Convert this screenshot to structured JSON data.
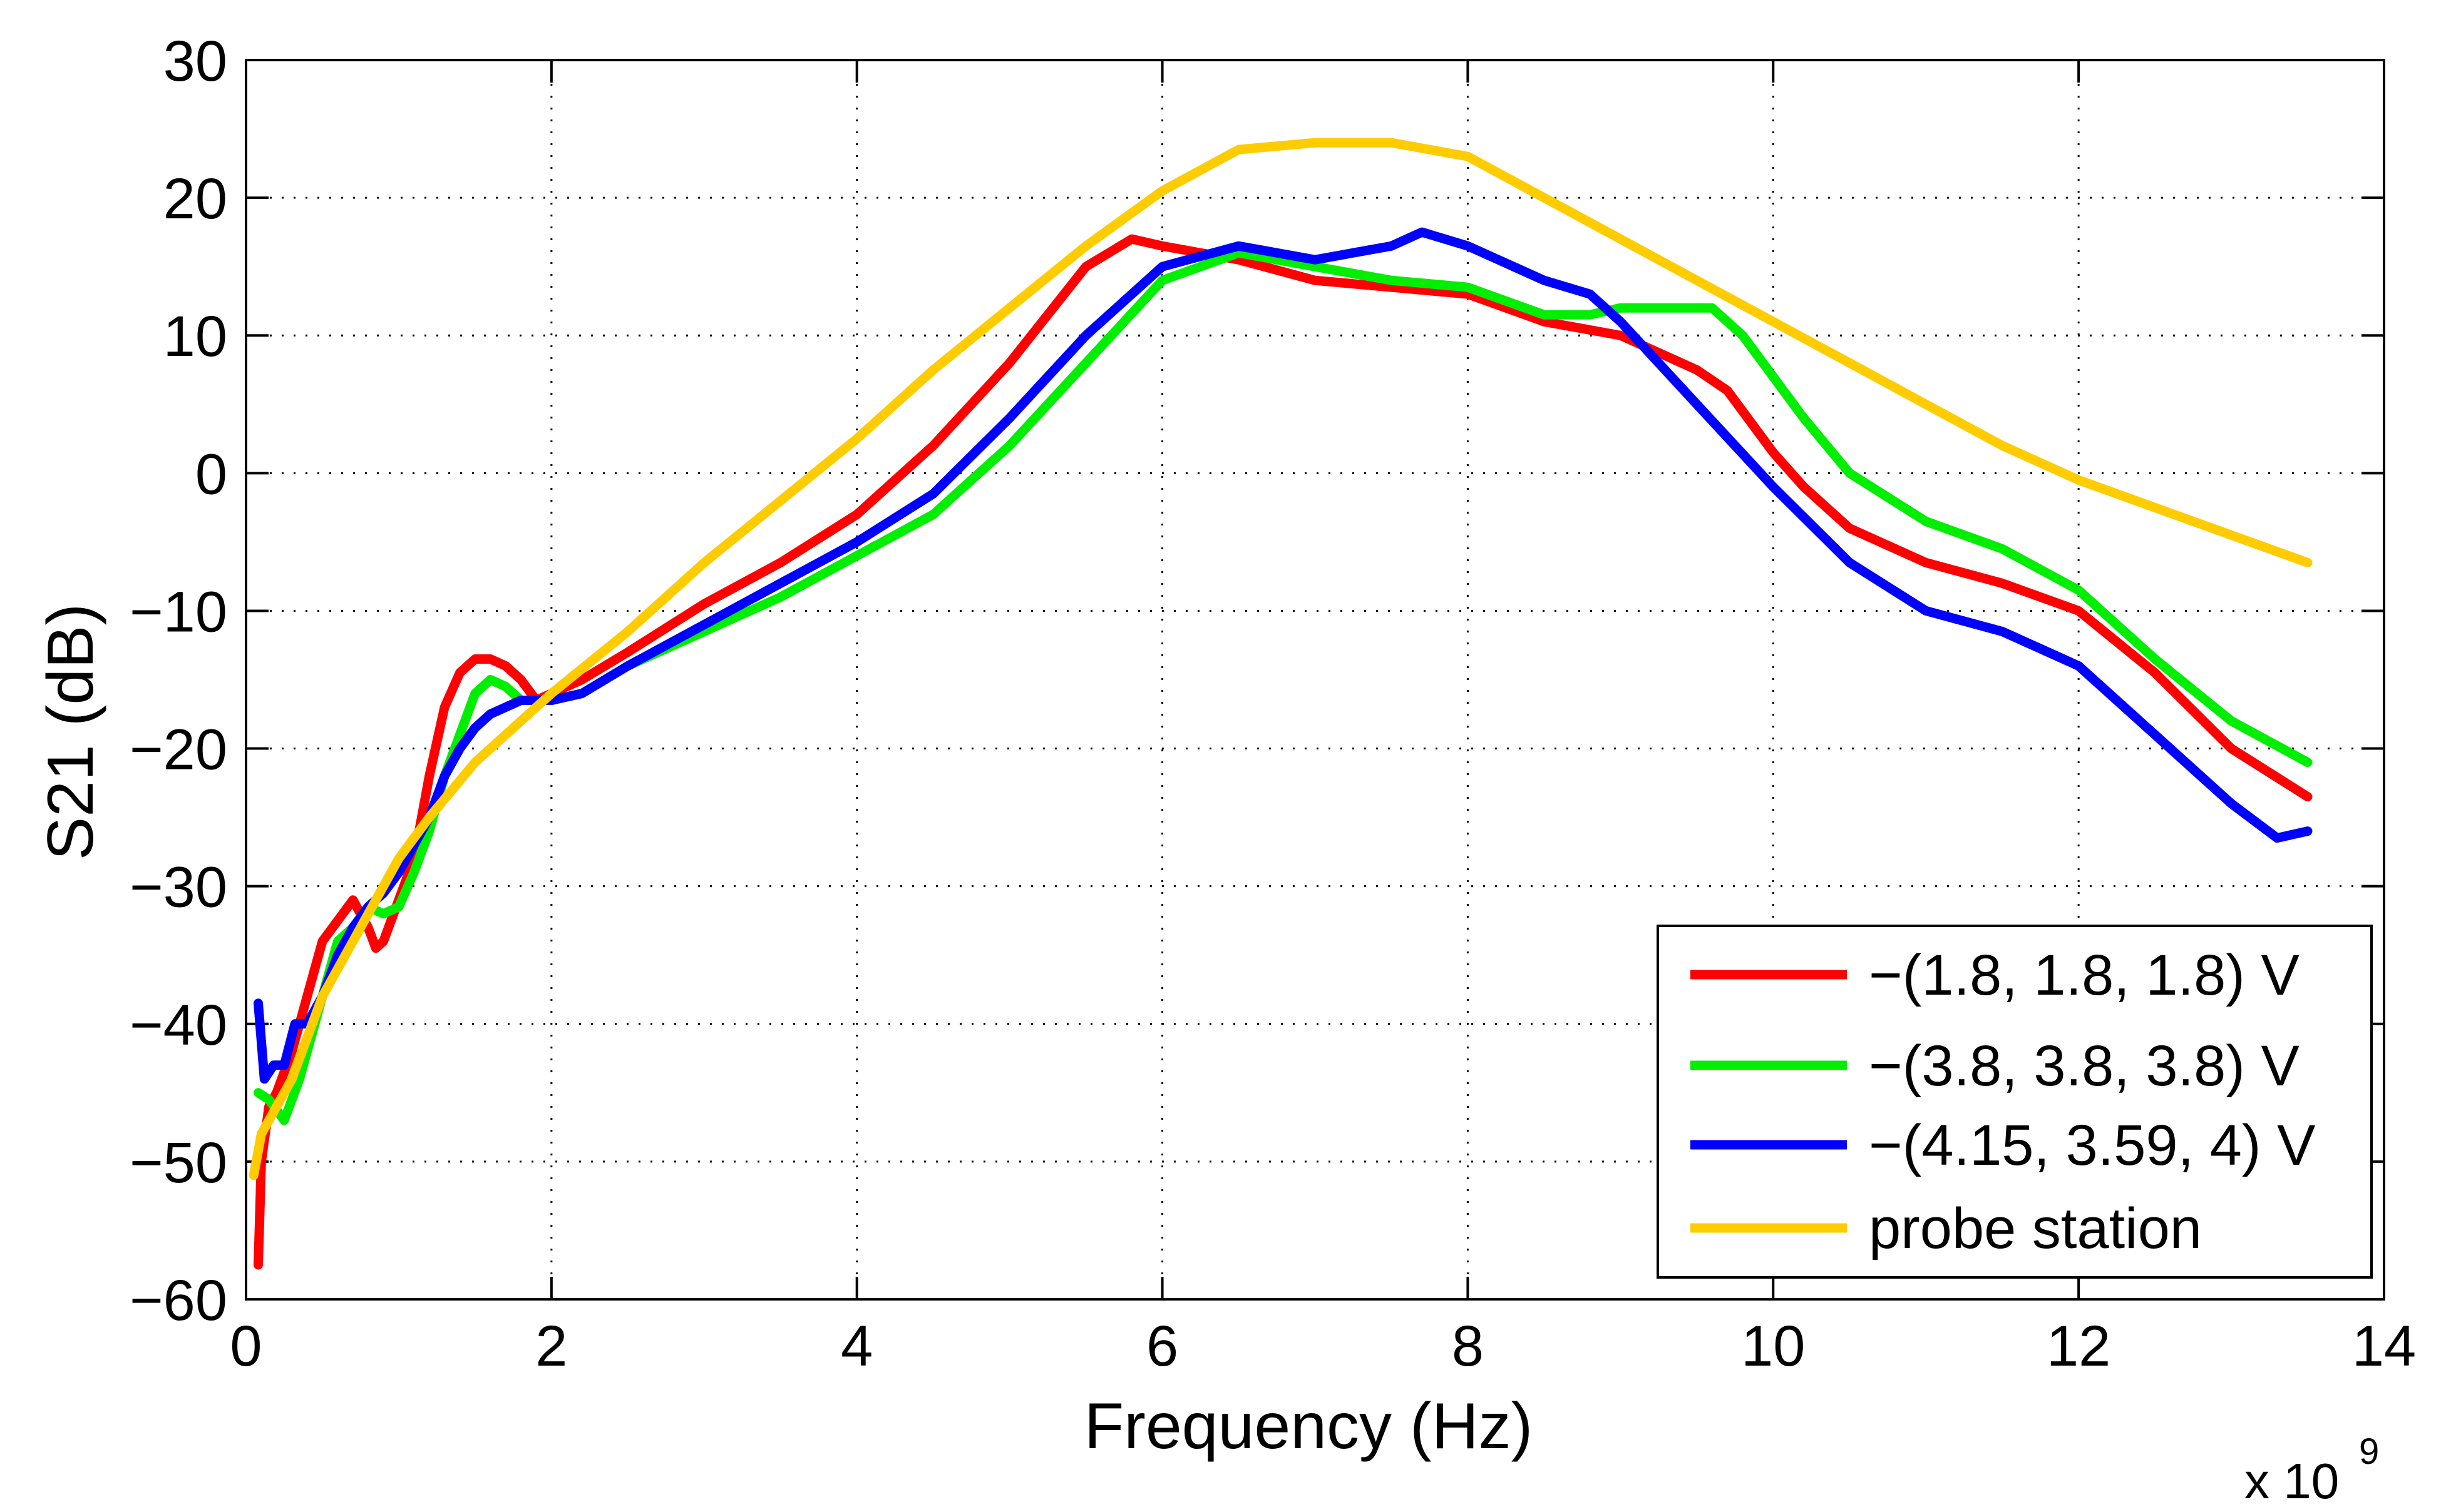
{
  "chart_data": {
    "type": "line",
    "title": "",
    "xlabel": "Frequency (Hz)",
    "ylabel": "S21 (dB)",
    "x_multiplier_label": "x 10",
    "x_multiplier_exp": "9",
    "xlim": [
      0,
      14
    ],
    "ylim": [
      -60,
      30
    ],
    "xticks": [
      0,
      2,
      4,
      6,
      8,
      10,
      12,
      14
    ],
    "xtick_labels": [
      "0",
      "2",
      "4",
      "6",
      "8",
      "10",
      "12",
      "14"
    ],
    "yticks": [
      30,
      20,
      10,
      0,
      -10,
      -20,
      -30,
      -40,
      -50,
      -60
    ],
    "ytick_labels": [
      "30",
      "20",
      "10",
      "0",
      "−10",
      "−20",
      "−30",
      "−40",
      "−50",
      "−60"
    ],
    "grid": true,
    "legend_position": "bottom-right",
    "series": [
      {
        "name": "−(1.8, 1.8, 1.8) V",
        "color": "#ff0000",
        "x": [
          0.08,
          0.1,
          0.15,
          0.2,
          0.3,
          0.4,
          0.5,
          0.6,
          0.7,
          0.8,
          0.85,
          0.9,
          1.0,
          1.1,
          1.2,
          1.3,
          1.4,
          1.5,
          1.6,
          1.7,
          1.8,
          1.9,
          2.0,
          2.2,
          2.5,
          3.0,
          3.5,
          4.0,
          4.5,
          5.0,
          5.5,
          5.8,
          6.0,
          6.5,
          7.0,
          7.5,
          8.0,
          8.5,
          9.0,
          9.5,
          9.7,
          9.9,
          10.0,
          10.2,
          10.5,
          11.0,
          11.5,
          12.0,
          12.5,
          13.0,
          13.5
        ],
        "y": [
          -57.5,
          -50,
          -46,
          -45,
          -42,
          -38,
          -34,
          -32.5,
          -31,
          -33,
          -34.5,
          -34,
          -31,
          -28,
          -22,
          -17,
          -14.5,
          -13.5,
          -13.5,
          -14,
          -15,
          -16.5,
          -16,
          -15,
          -13,
          -9.5,
          -6.5,
          -3,
          2,
          8,
          15,
          17,
          16.5,
          15.5,
          14,
          13.5,
          13,
          11,
          10,
          7.5,
          6,
          3,
          1.5,
          -1,
          -4,
          -6.5,
          -8,
          -10,
          -14.5,
          -20,
          -23.5
        ]
      },
      {
        "name": "−(3.8, 3.8, 3.8) V",
        "color": "#00ee00",
        "x": [
          0.08,
          0.15,
          0.25,
          0.35,
          0.45,
          0.6,
          0.7,
          0.8,
          0.9,
          1.0,
          1.1,
          1.2,
          1.3,
          1.4,
          1.5,
          1.6,
          1.7,
          1.8,
          1.9,
          2.0,
          2.2,
          2.5,
          3.0,
          3.5,
          4.0,
          4.5,
          5.0,
          5.5,
          6.0,
          6.5,
          7.0,
          7.5,
          8.0,
          8.5,
          8.8,
          9.0,
          9.3,
          9.6,
          9.8,
          10.0,
          10.2,
          10.5,
          11.0,
          11.5,
          12.0,
          12.5,
          13.0,
          13.5
        ],
        "y": [
          -45,
          -45.5,
          -47,
          -44,
          -40,
          -34,
          -33,
          -31.5,
          -32,
          -31.5,
          -29,
          -26,
          -22,
          -19,
          -16,
          -15,
          -15.5,
          -16.5,
          -16.5,
          -16.5,
          -16,
          -14,
          -11.5,
          -9,
          -6,
          -3,
          2,
          8,
          14,
          16,
          15,
          14,
          13.5,
          11.5,
          11.5,
          12,
          12,
          12,
          10,
          7,
          4,
          0,
          -3.5,
          -5.5,
          -8.5,
          -13.5,
          -18,
          -21
        ]
      },
      {
        "name": "−(4.15, 3.59, 4) V",
        "color": "#0000ff",
        "x": [
          0.08,
          0.12,
          0.18,
          0.25,
          0.32,
          0.4,
          0.5,
          0.6,
          0.7,
          0.8,
          0.9,
          1.0,
          1.1,
          1.2,
          1.3,
          1.4,
          1.5,
          1.6,
          1.7,
          1.8,
          1.9,
          2.0,
          2.2,
          2.5,
          3.0,
          3.5,
          4.0,
          4.5,
          5.0,
          5.5,
          6.0,
          6.5,
          7.0,
          7.5,
          7.7,
          8.0,
          8.5,
          8.8,
          9.0,
          9.5,
          10.0,
          10.5,
          11.0,
          11.5,
          12.0,
          12.5,
          13.0,
          13.3,
          13.5
        ],
        "y": [
          -38.5,
          -44,
          -43,
          -43,
          -40,
          -40,
          -38,
          -35,
          -33,
          -31.5,
          -30.5,
          -29,
          -27,
          -25,
          -22,
          -20,
          -18.5,
          -17.5,
          -17,
          -16.5,
          -16.5,
          -16.5,
          -16,
          -14,
          -11,
          -8,
          -5,
          -1.5,
          4,
          10,
          15,
          16.5,
          15.5,
          16.5,
          17.5,
          16.5,
          14,
          13,
          11,
          5,
          -1,
          -6.5,
          -10,
          -11.5,
          -14,
          -19,
          -24,
          -26.5,
          -26
        ]
      },
      {
        "name": "probe station",
        "color": "#ffcc00",
        "x": [
          0.05,
          0.1,
          0.2,
          0.3,
          0.4,
          0.5,
          0.6,
          0.7,
          0.8,
          1.0,
          1.2,
          1.5,
          2.0,
          2.5,
          3.0,
          3.5,
          4.0,
          4.5,
          5.0,
          5.5,
          6.0,
          6.5,
          7.0,
          7.5,
          8.0,
          8.5,
          9.0,
          9.5,
          10.0,
          10.5,
          11.0,
          11.5,
          12.0,
          12.5,
          13.0,
          13.5
        ],
        "y": [
          -51,
          -48,
          -46,
          -44,
          -41,
          -38,
          -36,
          -34,
          -32,
          -28,
          -25,
          -21,
          -16,
          -11.5,
          -6.5,
          -2,
          2.5,
          7.5,
          12,
          16.5,
          20.5,
          23.5,
          24,
          24,
          23,
          20,
          17,
          14,
          11,
          8,
          5,
          2,
          -0.5,
          -2.5,
          -4.5,
          -6.5
        ]
      }
    ]
  }
}
